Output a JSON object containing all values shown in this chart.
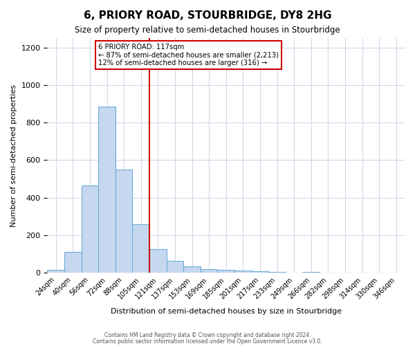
{
  "title": "6, PRIORY ROAD, STOURBRIDGE, DY8 2HG",
  "subtitle": "Size of property relative to semi-detached houses in Stourbridge",
  "xlabel": "Distribution of semi-detached houses by size in Stourbridge",
  "ylabel": "Number of semi-detached properties",
  "bar_color": "#c5d8f0",
  "bar_edge_color": "#6aaed6",
  "bins": [
    "24sqm",
    "40sqm",
    "56sqm",
    "72sqm",
    "88sqm",
    "105sqm",
    "121sqm",
    "137sqm",
    "153sqm",
    "169sqm",
    "185sqm",
    "201sqm",
    "217sqm",
    "233sqm",
    "249sqm",
    "266sqm",
    "282sqm",
    "298sqm",
    "314sqm",
    "330sqm",
    "346sqm"
  ],
  "heights": [
    15,
    110,
    465,
    885,
    550,
    260,
    125,
    62,
    35,
    20,
    15,
    10,
    8,
    5,
    0,
    5,
    0,
    0,
    0,
    0,
    0
  ],
  "ylim": [
    0,
    1250
  ],
  "yticks": [
    0,
    200,
    400,
    600,
    800,
    1000,
    1200
  ],
  "vline_x_index": 6,
  "vline_label": "6 PRIORY ROAD: 117sqm",
  "annotation_smaller": "← 87% of semi-detached houses are smaller (2,213)",
  "annotation_larger": "12% of semi-detached houses are larger (316) →",
  "annotation_box_color": "#ffffff",
  "annotation_box_edge_color": "#cc0000",
  "vline_color": "#cc0000",
  "footer1": "Contains HM Land Registry data © Crown copyright and database right 2024.",
  "footer2": "Contains public sector information licensed under the Open Government Licence v3.0.",
  "background_color": "#ffffff",
  "grid_color": "#d0d8e8"
}
